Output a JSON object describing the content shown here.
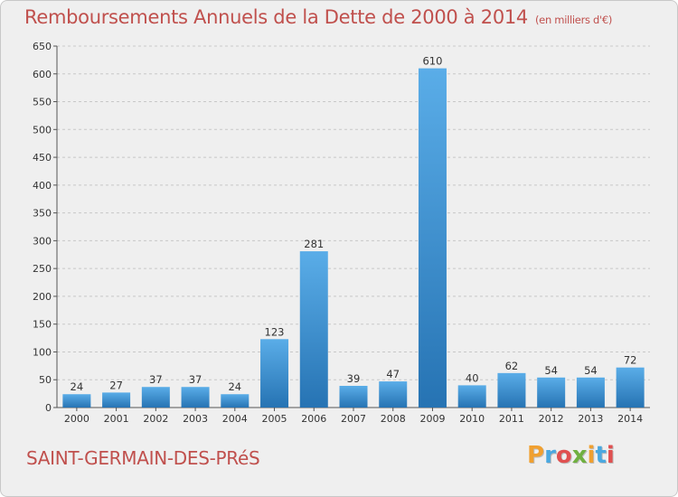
{
  "title": "Remboursements Annuels de la Dette de 2000 à 2014",
  "unit": "(en milliers d'€)",
  "commune": "SAINT-GERMAIN-DES-PRéS",
  "logo": {
    "text": "Proxiti",
    "colors": [
      "#f0a030",
      "#4aa8e0",
      "#e05050",
      "#70b040",
      "#f0a030",
      "#4aa8e0",
      "#e05050"
    ]
  },
  "colors": {
    "accent": "#c0504d",
    "bar_light": "#5aade8",
    "bar_dark": "#2673b3",
    "grid": "#c8c8c8",
    "background": "#efefef"
  },
  "chart_data": {
    "type": "bar",
    "categories": [
      "2000",
      "2001",
      "2002",
      "2003",
      "2004",
      "2005",
      "2006",
      "2007",
      "2008",
      "2009",
      "2010",
      "2011",
      "2012",
      "2013",
      "2014"
    ],
    "values": [
      24,
      27,
      37,
      37,
      24,
      123,
      281,
      39,
      47,
      610,
      40,
      62,
      54,
      54,
      72
    ],
    "title": "Remboursements Annuels de la Dette de 2000 à 2014",
    "xlabel": "",
    "ylabel": "",
    "ylim": [
      0,
      650
    ],
    "yticks": [
      0,
      50,
      100,
      150,
      200,
      250,
      300,
      350,
      400,
      450,
      500,
      550,
      600,
      650
    ],
    "grid": true,
    "data_labels": true
  }
}
